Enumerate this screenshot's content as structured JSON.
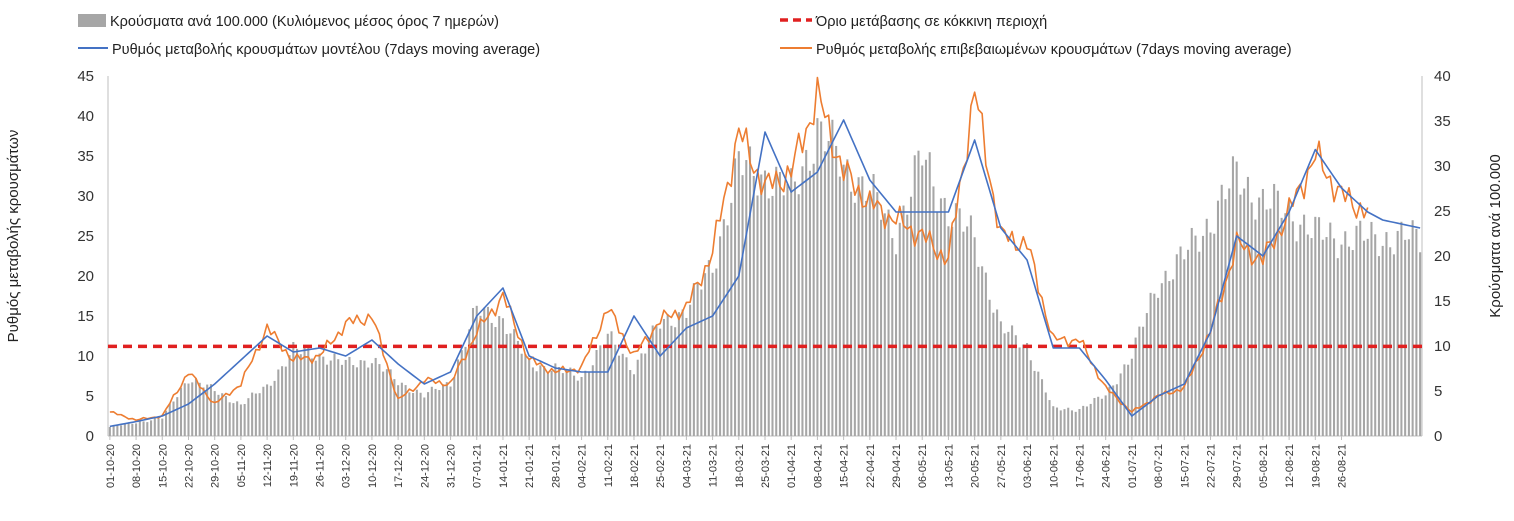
{
  "chart_data": {
    "type": "bar",
    "legend": {
      "bars": "Κρούσματα ανά 100.000 (Κυλιόμενος μέσος όρος 7 ημερών)",
      "threshold": "Όριο μετάβασης σε κόκκινη περιοχή",
      "model": "Ρυθμός μεταβολής κρουσμάτων μοντέλου (7days moving average)",
      "confirmed": "Ρυθμός μεταβολής επιβεβαιωμένων κρουσμάτων (7days moving average)"
    },
    "ylabel": "Ρυθμός μεταβολής κρουσμάτων",
    "y2label": "Κρούσματα ανά 100.000",
    "ylim": [
      0,
      45
    ],
    "y2lim": [
      0,
      40
    ],
    "yticks": [
      "0",
      "5",
      "10",
      "15",
      "20",
      "25",
      "30",
      "35",
      "40",
      "45"
    ],
    "y2ticks": [
      "0",
      "5",
      "10",
      "15",
      "20",
      "25",
      "30",
      "35",
      "40"
    ],
    "xticks": [
      "01-10-20",
      "08-10-20",
      "15-10-20",
      "22-10-20",
      "29-10-20",
      "05-11-20",
      "12-11-20",
      "19-11-20",
      "26-11-20",
      "03-12-20",
      "10-12-20",
      "17-12-20",
      "24-12-20",
      "31-12-20",
      "07-01-21",
      "14-01-21",
      "21-01-21",
      "28-01-21",
      "04-02-21",
      "11-02-21",
      "18-02-21",
      "25-02-21",
      "04-03-21",
      "11-03-21",
      "18-03-21",
      "25-03-21",
      "01-04-21",
      "08-04-21",
      "15-04-21",
      "22-04-21",
      "29-04-21",
      "06-05-21",
      "13-05-21",
      "20-05-21",
      "27-05-21",
      "03-06-21",
      "10-06-21",
      "17-06-21",
      "24-06-21",
      "01-07-21",
      "08-07-21",
      "15-07-21",
      "22-07-21",
      "29-07-21",
      "05-08-21",
      "12-08-21",
      "19-08-21",
      "26-08-21"
    ],
    "threshold_value": 11.2,
    "bar_key_days": [
      0,
      14,
      21,
      35,
      42,
      49,
      56,
      63,
      70,
      77,
      84,
      91,
      98,
      105,
      112,
      119,
      126,
      133,
      140,
      147,
      154,
      161,
      168,
      175,
      182,
      189,
      196,
      203,
      210,
      217,
      224,
      231,
      238,
      245,
      252,
      259,
      266,
      273,
      280,
      287,
      294,
      301,
      308,
      315,
      322,
      329,
      336,
      343,
      350
    ],
    "bar_key_values": [
      1.0,
      2.0,
      6.5,
      3.5,
      5.5,
      9.5,
      9.0,
      8.0,
      8.5,
      6.0,
      4.5,
      6.0,
      14.0,
      13.0,
      8.0,
      7.5,
      6.5,
      11.0,
      7.5,
      12.5,
      14.0,
      19.0,
      30.0,
      29.0,
      27.0,
      34.0,
      30.0,
      27.0,
      22.5,
      31.0,
      25.0,
      22.0,
      12.0,
      10.0,
      3.0,
      3.0,
      4.5,
      9.0,
      17.0,
      20.0,
      24.0,
      29.0,
      26.0,
      25.0,
      22.5,
      22.0,
      22.0,
      22.0,
      22.0
    ],
    "model_key_days": [
      0,
      7,
      14,
      21,
      28,
      35,
      42,
      49,
      56,
      63,
      70,
      77,
      84,
      91,
      98,
      105,
      112,
      119,
      126,
      133,
      140,
      147,
      154,
      161,
      168,
      175,
      182,
      189,
      196,
      203,
      210,
      217,
      224,
      231,
      238,
      245,
      252,
      259,
      266,
      273,
      280,
      287,
      294,
      301,
      308,
      315,
      322,
      329,
      336,
      340,
      350
    ],
    "model_key_values": [
      1.2,
      1.8,
      2.5,
      4.0,
      6.5,
      9.5,
      12.5,
      10.5,
      11.0,
      10.0,
      12.0,
      9.0,
      6.5,
      8.0,
      15.0,
      18.5,
      10.0,
      8.5,
      8.0,
      8.0,
      15.0,
      10.0,
      13.5,
      15.0,
      20.0,
      38.0,
      30.5,
      33.0,
      39.5,
      32.0,
      28.0,
      28.0,
      28.0,
      37.0,
      26.0,
      22.0,
      11.0,
      11.0,
      7.0,
      2.5,
      5.0,
      6.5,
      13.0,
      25.0,
      22.5,
      28.0,
      35.8,
      31.0,
      28.0,
      27.0,
      26.0
    ],
    "confirmed_key_days": [
      0,
      7,
      14,
      21,
      28,
      35,
      42,
      49,
      56,
      63,
      70,
      77,
      84,
      91,
      98,
      105,
      112,
      119,
      126,
      133,
      140,
      147,
      154,
      161,
      168,
      175,
      182,
      189,
      196,
      203,
      210,
      217,
      224,
      231,
      238,
      245,
      252,
      259,
      266,
      273,
      280,
      287,
      294,
      301,
      308,
      315,
      322,
      329,
      336
    ],
    "confirmed_key_values": [
      3.0,
      2.0,
      2.5,
      8.0,
      4.0,
      6.5,
      13.5,
      9.5,
      10.0,
      14.0,
      15.0,
      4.5,
      7.0,
      6.5,
      13.0,
      17.5,
      9.5,
      8.0,
      8.5,
      16.0,
      10.0,
      14.5,
      16.0,
      23.0,
      38.0,
      31.0,
      33.0,
      42.5,
      33.0,
      29.0,
      27.0,
      25.0,
      22.0,
      43.0,
      25.0,
      24.0,
      12.0,
      12.0,
      6.0,
      3.0,
      5.0,
      6.0,
      13.0,
      24.0,
      22.0,
      28.0,
      35.0,
      30.0,
      28.0
    ],
    "colors": {
      "bars": "#a6a6a6",
      "threshold": "#e02020",
      "model": "#4472c4",
      "confirmed": "#ed7d31"
    },
    "total_days": 351,
    "grid": false,
    "legend_position": "top"
  }
}
